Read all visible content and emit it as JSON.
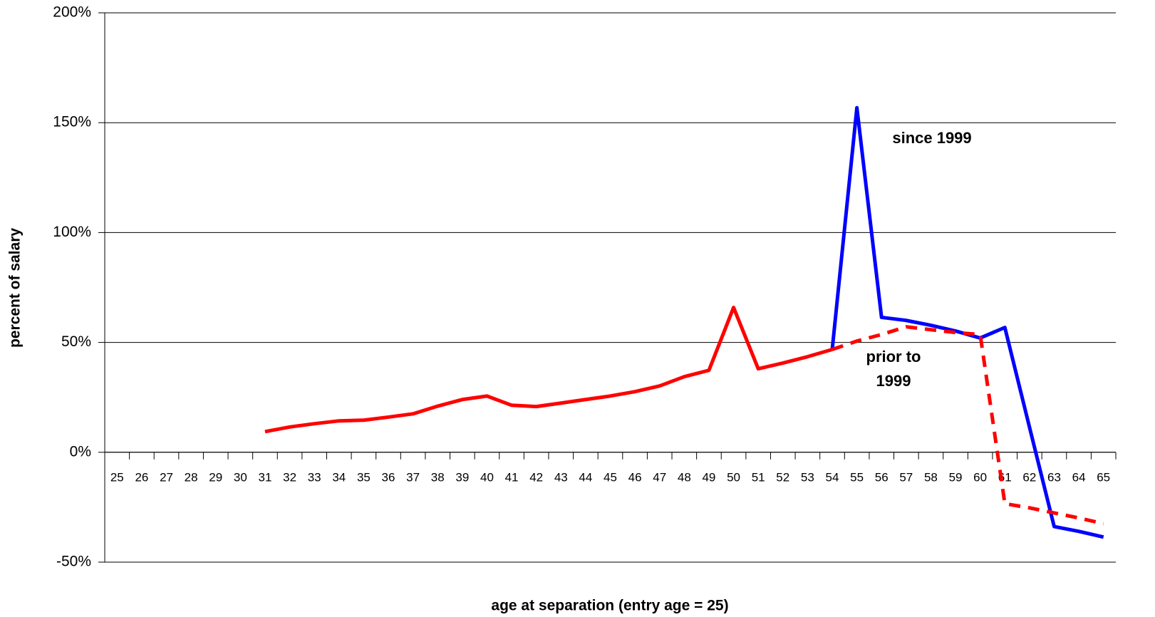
{
  "chart_data": {
    "type": "line",
    "x_label": "age at separation (entry age = 25)",
    "y_label": "percent of salary",
    "categories": [
      "25",
      "26",
      "27",
      "28",
      "29",
      "30",
      "31",
      "32",
      "33",
      "34",
      "35",
      "36",
      "37",
      "38",
      "39",
      "40",
      "41",
      "42",
      "43",
      "44",
      "45",
      "46",
      "47",
      "48",
      "49",
      "50",
      "51",
      "52",
      "53",
      "54",
      "55",
      "56",
      "57",
      "58",
      "59",
      "60",
      "61",
      "62",
      "63",
      "64",
      "65"
    ],
    "series": [
      {
        "name": "since 1999",
        "color": "#0000ff",
        "dashed": false,
        "values": [
          null,
          null,
          null,
          null,
          null,
          null,
          null,
          null,
          null,
          null,
          null,
          null,
          null,
          null,
          null,
          null,
          null,
          null,
          null,
          null,
          null,
          null,
          null,
          null,
          null,
          null,
          null,
          null,
          null,
          46.8,
          156.8,
          61.4,
          60,
          57.8,
          55.2,
          52,
          56.8,
          11.4,
          -33.8,
          -36,
          -38.6
        ]
      },
      {
        "name": "prior to 1999",
        "color": "#ff0000",
        "dashed": true,
        "values": [
          null,
          null,
          null,
          null,
          null,
          null,
          null,
          null,
          null,
          null,
          null,
          null,
          null,
          null,
          null,
          null,
          null,
          null,
          null,
          null,
          null,
          null,
          null,
          null,
          null,
          null,
          null,
          null,
          null,
          46.8,
          50.6,
          53.6,
          57.1,
          55.8,
          54.5,
          53.6,
          -23.4,
          -25.3,
          -27.6,
          -29.9,
          -32.5
        ]
      },
      {
        "color": "#ff0000",
        "dashed": false,
        "values": [
          null,
          null,
          null,
          null,
          null,
          null,
          9.4,
          11.5,
          13,
          14.3,
          14.6,
          16,
          17.5,
          21,
          24,
          25.6,
          21.4,
          20.8,
          22.4,
          24,
          25.6,
          27.6,
          30.2,
          34.4,
          37.3,
          65.9,
          38,
          40.6,
          43.5,
          46.8,
          null,
          null,
          null,
          null,
          null,
          null,
          null,
          null,
          null,
          null,
          null
        ]
      }
    ],
    "ylim": [
      -50,
      200
    ],
    "yticks": [
      {
        "value": -50,
        "label": "-50%"
      },
      {
        "value": 0,
        "label": "0%"
      },
      {
        "value": 50,
        "label": "50%"
      },
      {
        "value": 100,
        "label": "100%"
      },
      {
        "value": 150,
        "label": "150%"
      },
      {
        "value": 200,
        "label": "200%"
      }
    ],
    "grid": true
  }
}
